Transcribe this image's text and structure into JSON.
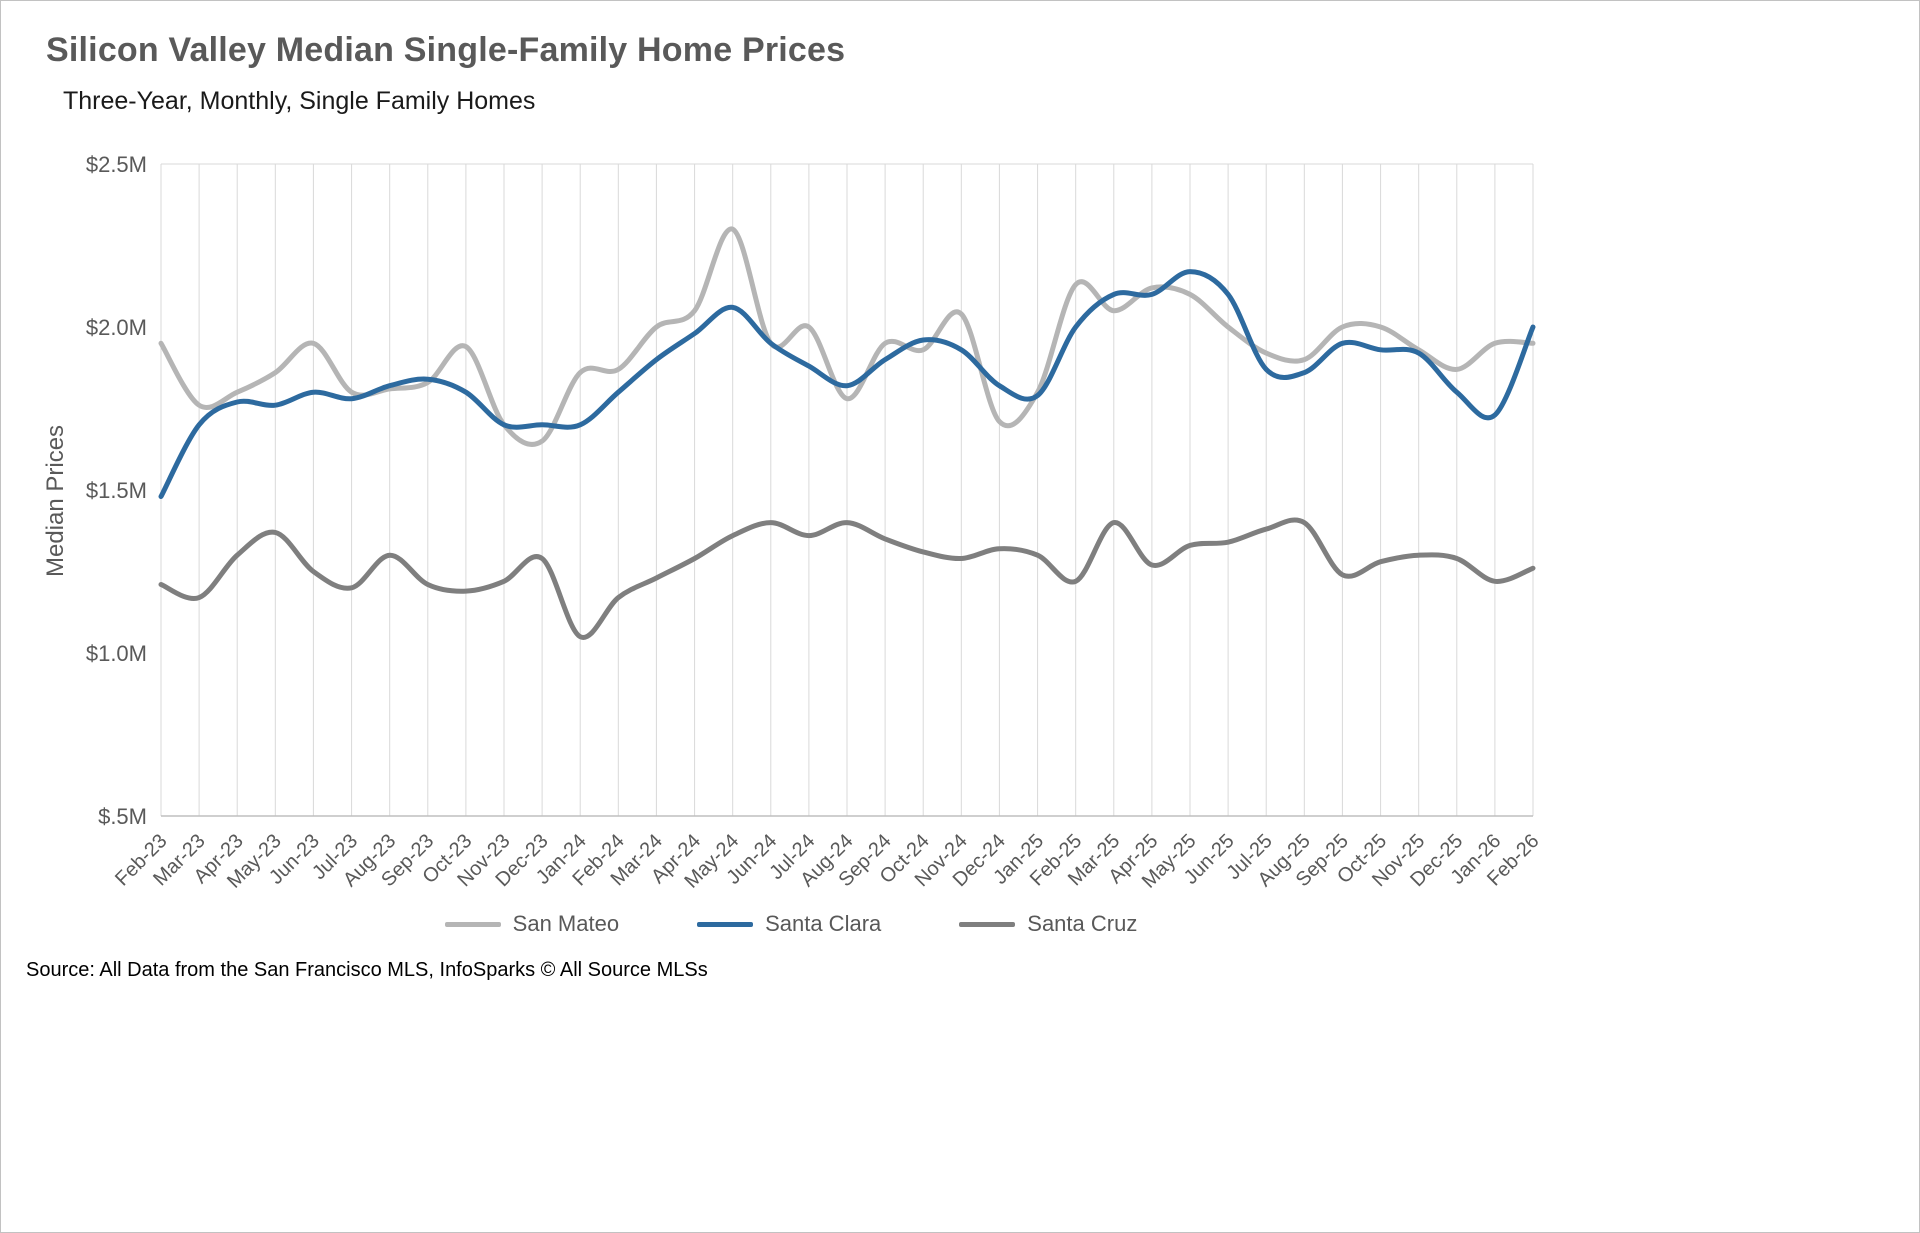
{
  "header": {
    "title": "Silicon Valley Median Single-Family Home Prices",
    "subtitle": "Three-Year, Monthly, Single Family Homes"
  },
  "chart_data": {
    "type": "line",
    "title": "Silicon Valley Median Single-Family Home Prices",
    "subtitle": "Three-Year, Monthly, Single Family Homes",
    "xlabel": "",
    "ylabel": "Median Prices",
    "ylim": [
      0.5,
      2.5
    ],
    "yticks": [
      "$.5M",
      "$1.0M",
      "$1.5M",
      "$2.0M",
      "$2.5M"
    ],
    "ytick_values": [
      0.5,
      1.0,
      1.5,
      2.0,
      2.5
    ],
    "grid": "vertical",
    "legend_position": "bottom",
    "unit": "millions USD",
    "categories": [
      "Feb-23",
      "Mar-23",
      "Apr-23",
      "May-23",
      "Jun-23",
      "Jul-23",
      "Aug-23",
      "Sep-23",
      "Oct-23",
      "Nov-23",
      "Dec-23",
      "Jan-24",
      "Feb-24",
      "Mar-24",
      "Apr-24",
      "May-24",
      "Jun-24",
      "Jul-24",
      "Aug-24",
      "Sep-24",
      "Oct-24",
      "Nov-24",
      "Dec-24",
      "Jan-25",
      "Feb-25",
      "Mar-25",
      "Apr-25",
      "May-25",
      "Jun-25",
      "Jul-25",
      "Aug-25",
      "Sep-25",
      "Oct-25",
      "Nov-25",
      "Dec-25",
      "Jan-26",
      "Feb-26"
    ],
    "series": [
      {
        "name": "San Mateo",
        "color": "#b5b5b5",
        "values": [
          1.95,
          1.76,
          1.8,
          1.86,
          1.95,
          1.8,
          1.81,
          1.83,
          1.94,
          1.7,
          1.65,
          1.86,
          1.87,
          2.0,
          2.05,
          2.3,
          1.95,
          2.0,
          1.78,
          1.95,
          1.93,
          2.04,
          1.71,
          1.8,
          2.13,
          2.05,
          2.12,
          2.1,
          2.0,
          1.92,
          1.9,
          2.0,
          2.0,
          1.93,
          1.87,
          1.95,
          1.95
        ]
      },
      {
        "name": "Santa Clara",
        "color": "#2d6a9f",
        "values": [
          1.48,
          1.7,
          1.77,
          1.76,
          1.8,
          1.78,
          1.82,
          1.84,
          1.8,
          1.7,
          1.7,
          1.7,
          1.8,
          1.9,
          1.98,
          2.06,
          1.95,
          1.88,
          1.82,
          1.9,
          1.96,
          1.93,
          1.82,
          1.79,
          2.0,
          2.1,
          2.1,
          2.17,
          2.1,
          1.87,
          1.86,
          1.95,
          1.93,
          1.92,
          1.8,
          1.73,
          2.0
        ]
      },
      {
        "name": "Santa Cruz",
        "color": "#7f7f7f",
        "values": [
          1.21,
          1.17,
          1.3,
          1.37,
          1.25,
          1.2,
          1.3,
          1.21,
          1.19,
          1.22,
          1.29,
          1.05,
          1.17,
          1.23,
          1.29,
          1.36,
          1.4,
          1.36,
          1.4,
          1.35,
          1.31,
          1.29,
          1.32,
          1.3,
          1.22,
          1.4,
          1.27,
          1.33,
          1.34,
          1.38,
          1.4,
          1.24,
          1.28,
          1.3,
          1.29,
          1.22,
          1.26
        ]
      }
    ]
  },
  "colors": {
    "grid": "#d9d9d9",
    "axis": "#bfbfbf",
    "tick_text": "#595959",
    "title_text": "#595959"
  },
  "footer": {
    "source": "Source: All Data from the San Francisco MLS, InfoSparks © All Source MLSs"
  }
}
